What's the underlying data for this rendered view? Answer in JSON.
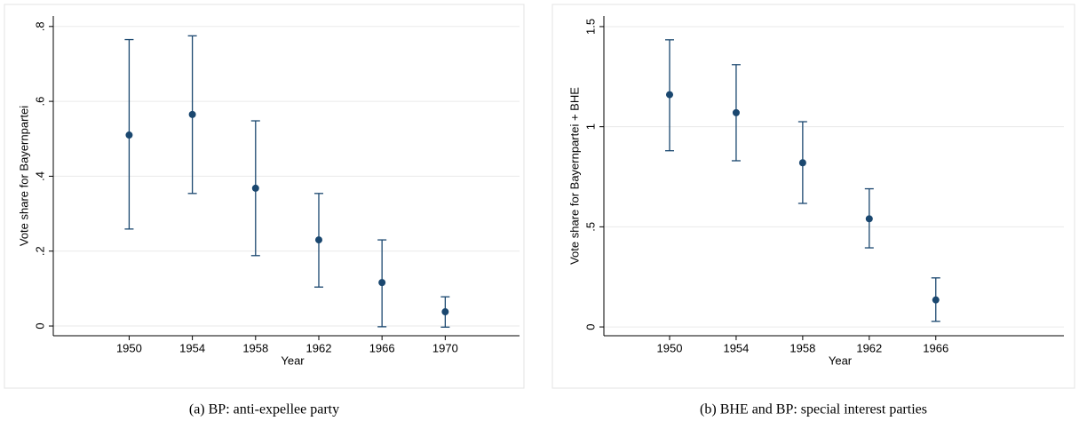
{
  "chart_data": [
    {
      "type": "errorbar",
      "caption": "(a) BP: anti-expellee party",
      "x_label": "Year",
      "y_label": "Vote share for Bayernpartei",
      "x": [
        1950,
        1954,
        1958,
        1962,
        1966,
        1970
      ],
      "values": [
        0.51,
        0.565,
        0.368,
        0.23,
        0.116,
        0.038
      ],
      "lower": [
        0.259,
        0.354,
        0.188,
        0.104,
        -0.002,
        -0.003
      ],
      "upper": [
        0.765,
        0.775,
        0.548,
        0.354,
        0.23,
        0.078
      ],
      "color": "#1a476f",
      "xlim": [
        1945.2,
        1974.7
      ],
      "xticks": [
        1950,
        1954,
        1958,
        1962,
        1966,
        1970
      ],
      "ylim": [
        -0.026,
        0.828
      ],
      "yticks": [
        0,
        {
          "value": 0.2,
          "label": ".2"
        },
        {
          "value": 0.4,
          "label": ".4"
        },
        {
          "value": 0.6,
          "label": ".6"
        },
        {
          "value": 0.8,
          "label": ".8"
        }
      ],
      "grid": true
    },
    {
      "type": "errorbar",
      "caption": "(b) BHE and BP: special interest parties",
      "x_label": "Year",
      "y_label": "Vote share for Bayernpartei + BHE",
      "x": [
        1950,
        1954,
        1958,
        1962,
        1966
      ],
      "values": [
        1.16,
        1.07,
        0.82,
        0.54,
        0.135
      ],
      "lower": [
        0.88,
        0.83,
        0.617,
        0.395,
        0.028
      ],
      "upper": [
        1.434,
        1.31,
        1.025,
        0.69,
        0.245
      ],
      "color": "#1a476f",
      "xlim": [
        1946.05,
        1973.7
      ],
      "xticks": [
        1950,
        1954,
        1958,
        1962,
        1966
      ],
      "ylim": [
        -0.044,
        1.553
      ],
      "yticks": [
        0,
        {
          "value": 0.5,
          "label": ".5"
        },
        1,
        1.5
      ],
      "grid": true
    }
  ]
}
